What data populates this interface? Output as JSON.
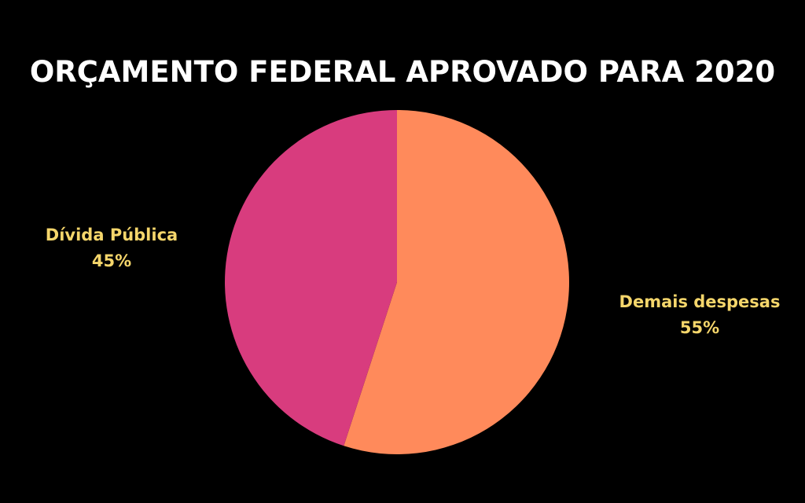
{
  "chart_data": {
    "type": "pie",
    "title": "ORÇAMENTO FEDERAL APROVADO PARA 2020",
    "slices": [
      {
        "label": "Demais despesas",
        "value": 55,
        "value_label": "55%",
        "color": "#ff8a5b"
      },
      {
        "label": "Dívida Pública",
        "value": 45,
        "value_label": "45%",
        "color": "#d83c7e"
      }
    ],
    "start": "12 o'clock",
    "direction": "clockwise",
    "legend": "none",
    "data_labels": "outside"
  },
  "colors": {
    "background": "#000000",
    "title": "#ffffff",
    "labels": "#f5d66b"
  }
}
